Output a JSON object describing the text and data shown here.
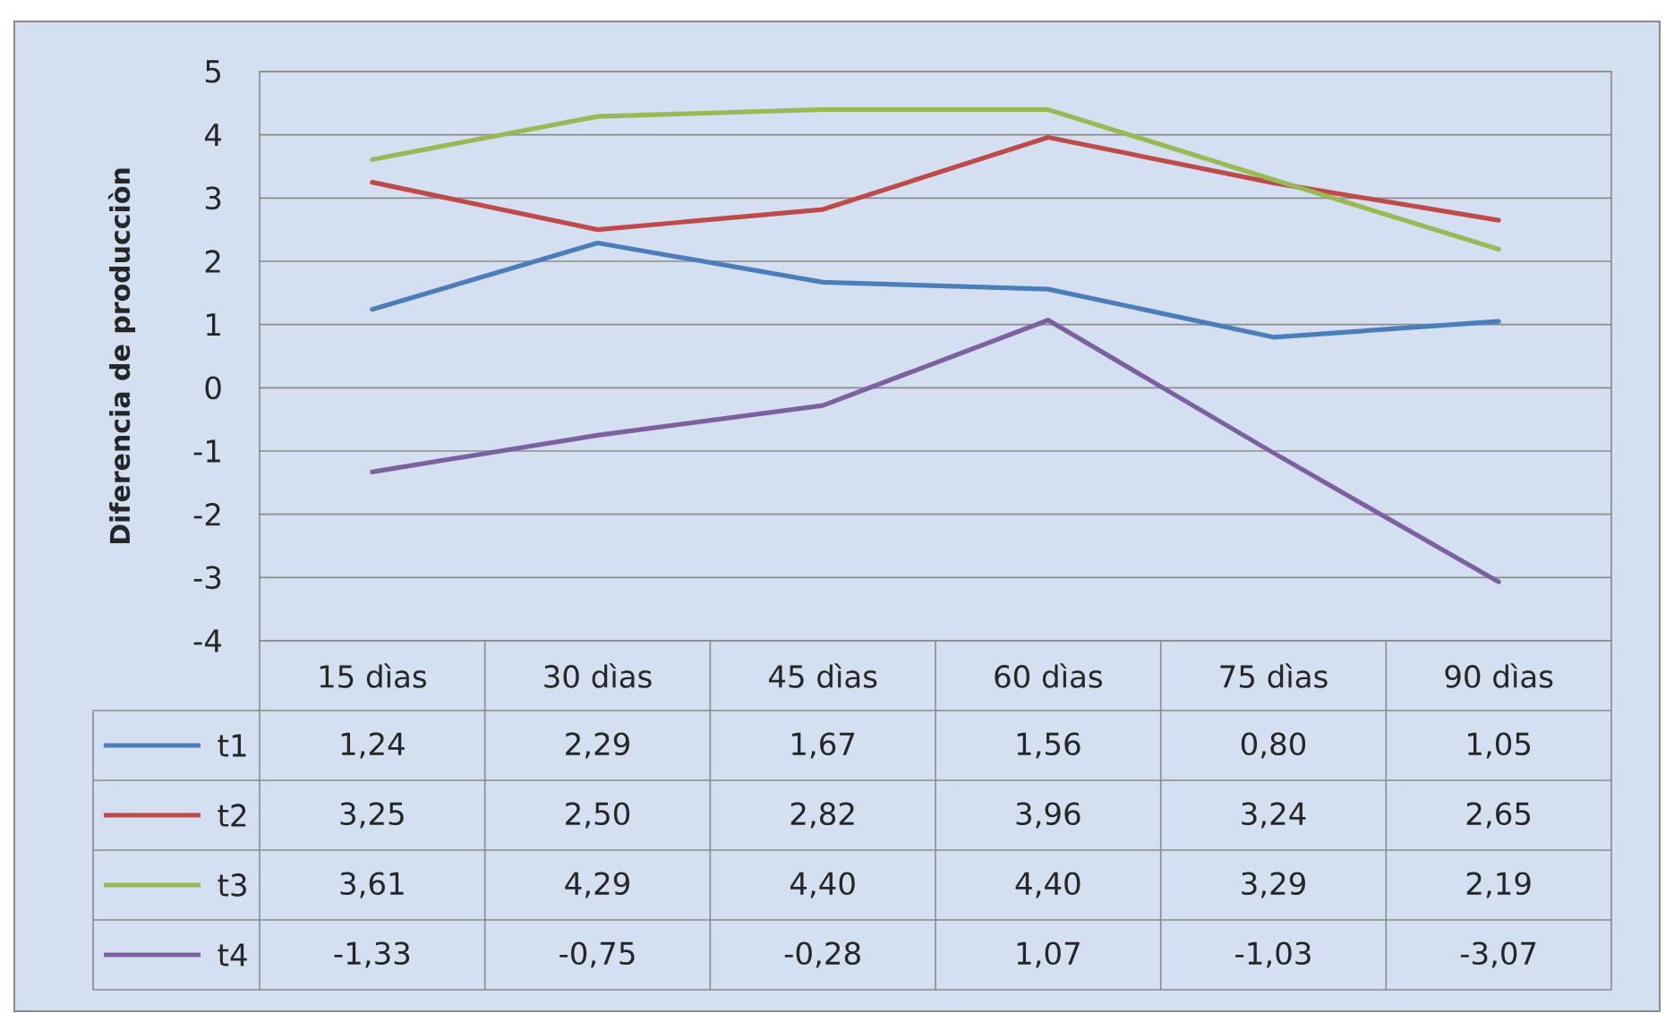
{
  "chart_data": {
    "type": "line",
    "ylabel": "Diferencia de producciòn",
    "categories": [
      "15 dìas",
      "30 dìas",
      "45 dìas",
      "60 dìas",
      "75 dìas",
      "90 dìas"
    ],
    "series": [
      {
        "name": "t1",
        "color": "#4a7ebb",
        "values": [
          1.24,
          2.29,
          1.67,
          1.56,
          0.8,
          1.05
        ],
        "value_labels": [
          "1,24",
          "2,29",
          "1,67",
          "1,56",
          "0,80",
          "1,05"
        ]
      },
      {
        "name": "t2",
        "color": "#be4b48",
        "values": [
          3.25,
          2.5,
          2.82,
          3.96,
          3.24,
          2.65
        ],
        "value_labels": [
          "3,25",
          "2,50",
          "2,82",
          "3,96",
          "3,24",
          "2,65"
        ]
      },
      {
        "name": "t3",
        "color": "#98b954",
        "values": [
          3.61,
          4.29,
          4.4,
          4.4,
          3.29,
          2.19
        ],
        "value_labels": [
          "3,61",
          "4,29",
          "4,40",
          "4,40",
          "3,29",
          "2,19"
        ]
      },
      {
        "name": "t4",
        "color": "#7d60a0",
        "values": [
          -1.33,
          -0.75,
          -0.28,
          1.07,
          -1.03,
          -3.07
        ],
        "value_labels": [
          "-1,33",
          "-0,75",
          "-0,28",
          "1,07",
          "-1,03",
          "-3,07"
        ]
      }
    ],
    "ylim": [
      -4,
      5
    ],
    "yticks": [
      -4,
      -3,
      -2,
      -1,
      0,
      1,
      2,
      3,
      4,
      5
    ],
    "grid": "y",
    "legend": "bottom",
    "marker": "none",
    "line_style": "solid"
  }
}
